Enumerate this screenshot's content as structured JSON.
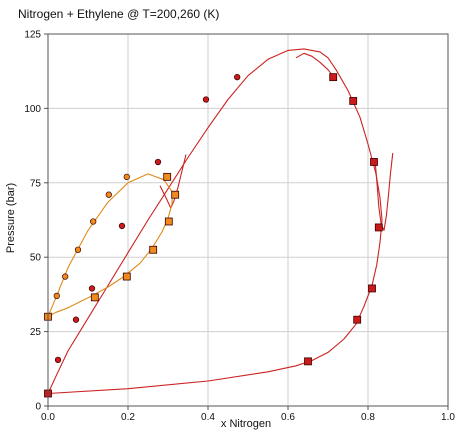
{
  "chart_data": {
    "type": "scatter",
    "title": "Nitrogen + Ethylene @ T=200,260 (K)",
    "xlabel": "x Nitrogen",
    "ylabel": "Pressure (bar)",
    "xlim": [
      0,
      1
    ],
    "ylim": [
      0,
      125
    ],
    "xticks": [
      0.0,
      0.2,
      0.4,
      0.6,
      0.8,
      1.0
    ],
    "xtick_labels": [
      "0.0",
      "0.2",
      "0.4",
      "0.6",
      "0.8",
      "1.0"
    ],
    "yticks": [
      0,
      25,
      50,
      75,
      100,
      125
    ],
    "ytick_labels": [
      "0",
      "25",
      "50",
      "75",
      "100",
      "125"
    ],
    "grid": true,
    "colors": {
      "red_curve": "#cc2222",
      "orange_curve": "#e08a1a",
      "red_marker": "#cc1a1a",
      "orange_marker": "#ef8a1e",
      "marker_edge": "#3a0000",
      "grid": "#cfcfcf",
      "axis": "#555555"
    },
    "series": [
      {
        "marker": "square",
        "color": "#cc1a1a",
        "x": [
          0.0,
          0.65,
          0.773,
          0.81,
          0.827,
          0.815,
          0.763,
          0.713
        ],
        "y": [
          4.2,
          15,
          29,
          39.5,
          60,
          82,
          102.5,
          110.5
        ]
      },
      {
        "marker": "circle",
        "color": "#cc1a1a",
        "x": [
          0.025,
          0.07,
          0.11,
          0.185,
          0.275,
          0.395,
          0.473
        ],
        "y": [
          15.5,
          29,
          39.5,
          60.5,
          82,
          103,
          110.5
        ]
      },
      {
        "marker": "square",
        "color": "#ef8a1e",
        "x": [
          0.0,
          0.117,
          0.197,
          0.263,
          0.302,
          0.318,
          0.298
        ],
        "y": [
          30,
          36.5,
          43.5,
          52.5,
          62,
          71,
          77
        ]
      },
      {
        "marker": "circle",
        "color": "#ef8a1e",
        "x": [
          0.022,
          0.043,
          0.075,
          0.113,
          0.152,
          0.197
        ],
        "y": [
          37,
          43.5,
          52.5,
          62,
          71,
          77
        ]
      },
      {
        "marker": "line",
        "color": "#cc2222",
        "x": [
          0.0,
          0.2,
          0.4,
          0.55,
          0.62,
          0.66,
          0.7,
          0.74,
          0.77,
          0.79,
          0.81,
          0.822,
          0.83,
          0.835,
          0.83,
          0.82,
          0.8,
          0.78,
          0.75,
          0.72,
          0.7,
          0.68,
          0.64,
          0.6,
          0.55,
          0.5,
          0.45,
          0.4,
          0.35,
          0.3,
          0.25,
          0.2,
          0.15,
          0.1,
          0.05,
          0.02,
          0.0
        ],
        "y": [
          4.2,
          5.8,
          8.4,
          11.5,
          13.5,
          15.3,
          18.0,
          22.5,
          27.5,
          33.5,
          40.5,
          47.5,
          55.0,
          62.5,
          70.0,
          78.0,
          88.0,
          97.0,
          106.0,
          113.0,
          117.0,
          119.0,
          120.0,
          119.5,
          116.5,
          111.0,
          103.0,
          93.5,
          83.5,
          73.0,
          62.5,
          51.5,
          40.5,
          29.5,
          18.5,
          10.0,
          4.2
        ]
      },
      {
        "marker": "line",
        "color": "#cc2222",
        "x": [
          0.818,
          0.823,
          0.827,
          0.833,
          0.84,
          0.846,
          0.852,
          0.856,
          0.862
        ],
        "y": [
          82.0,
          74.0,
          67.0,
          61.0,
          59.0,
          64.0,
          72.0,
          78.0,
          85.0
        ]
      },
      {
        "marker": "line",
        "color": "#cc2222",
        "x": [
          0.62,
          0.64,
          0.66,
          0.68,
          0.7,
          0.715
        ],
        "y": [
          117.0,
          118.5,
          117.5,
          115.5,
          113.0,
          110.5
        ]
      },
      {
        "marker": "line",
        "color": "#cc2222",
        "x": [
          0.28,
          0.295,
          0.307,
          0.315,
          0.325,
          0.335,
          0.345
        ],
        "y": [
          74.0,
          70.0,
          66.5,
          69.0,
          73.5,
          79.0,
          84.5
        ]
      },
      {
        "marker": "line",
        "color": "#e08a1a",
        "x": [
          0.0,
          0.02,
          0.05,
          0.08,
          0.11,
          0.15,
          0.19,
          0.23,
          0.26,
          0.285,
          0.3,
          0.31,
          0.31,
          0.29,
          0.25,
          0.2,
          0.15,
          0.1,
          0.05,
          0.02,
          0.0
        ],
        "y": [
          30.0,
          31.5,
          33.0,
          35.0,
          37.0,
          40.0,
          43.5,
          48.0,
          53.0,
          58.5,
          63.0,
          68.0,
          72.0,
          76.0,
          78.0,
          75.0,
          68.5,
          59.0,
          46.5,
          36.5,
          30.0
        ]
      }
    ]
  }
}
